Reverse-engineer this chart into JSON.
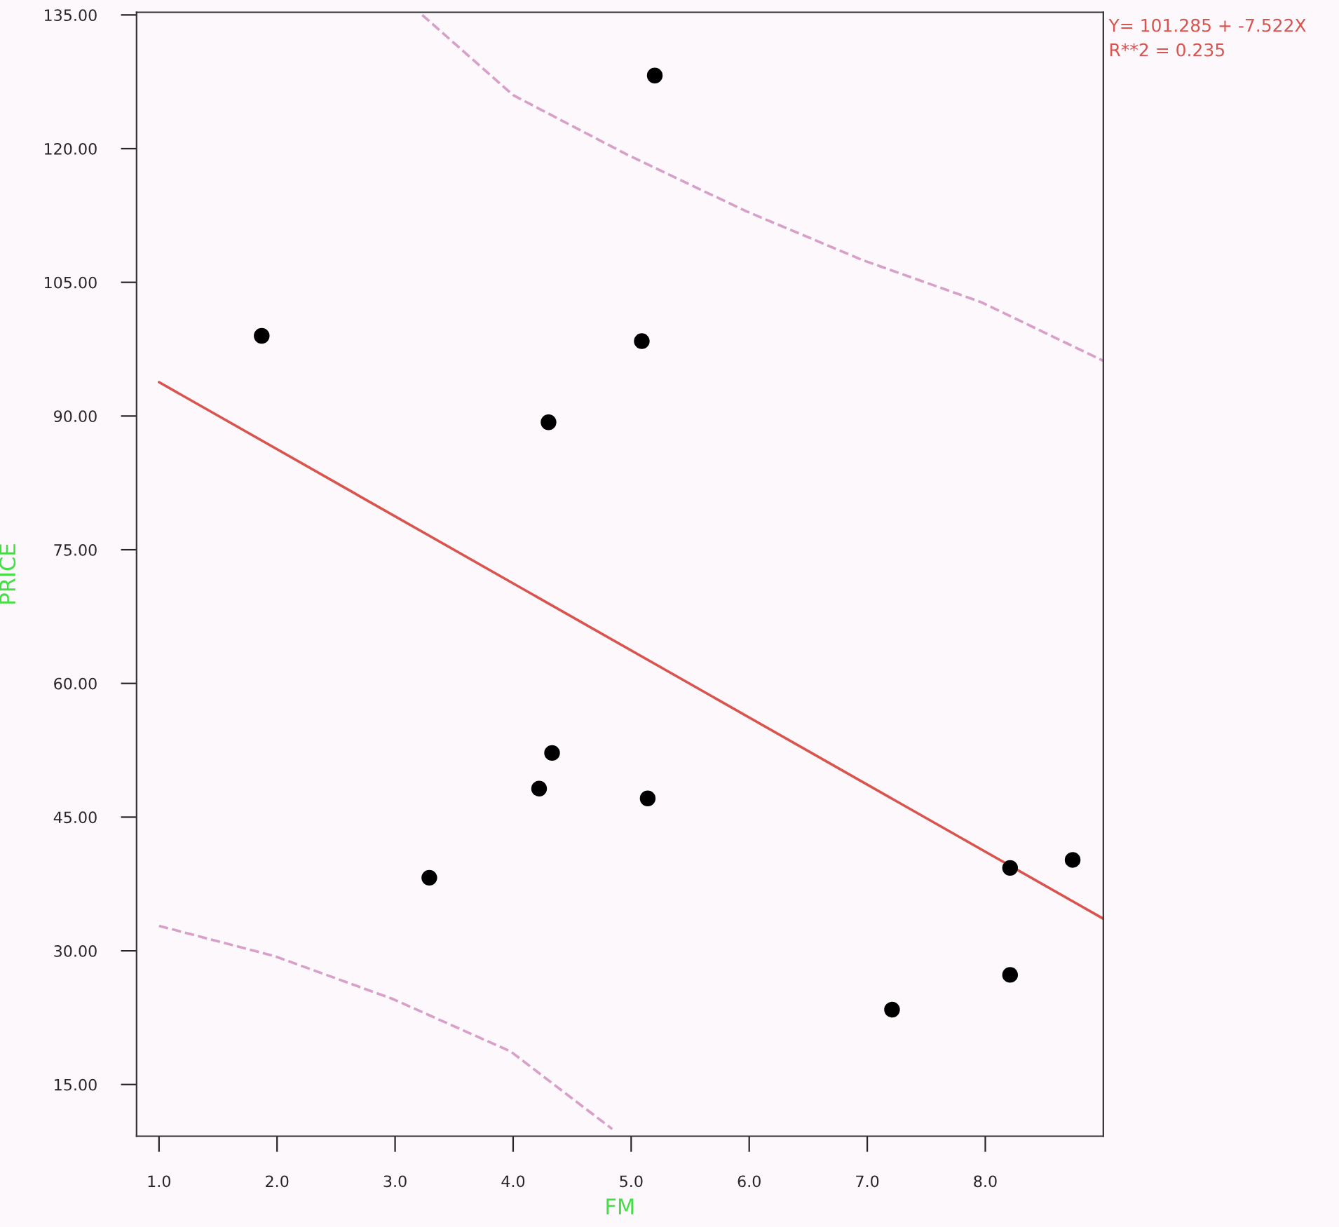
{
  "chart_data": {
    "type": "scatter",
    "xlabel": "FM",
    "ylabel": "PRICE",
    "annotations": [
      "Y= 101.285 + -7.522X",
      "R**2 = 0.235"
    ],
    "xlim": [
      0.81,
      9.0
    ],
    "ylim": [
      9.2,
      135.3
    ],
    "xticks": [
      {
        "value": 1,
        "label": "1.0"
      },
      {
        "value": 2,
        "label": "2.0"
      },
      {
        "value": 3,
        "label": "3.0"
      },
      {
        "value": 4,
        "label": "4.0"
      },
      {
        "value": 5,
        "label": "5.0"
      },
      {
        "value": 6,
        "label": "6.0"
      },
      {
        "value": 7,
        "label": "7.0"
      },
      {
        "value": 8,
        "label": "8.0"
      }
    ],
    "yticks": [
      {
        "value": 15,
        "label": "15.00"
      },
      {
        "value": 30,
        "label": "30.00"
      },
      {
        "value": 45,
        "label": "45.00"
      },
      {
        "value": 60,
        "label": "60.00"
      },
      {
        "value": 75,
        "label": "75.00"
      },
      {
        "value": 90,
        "label": "90.00"
      },
      {
        "value": 105,
        "label": "105.00"
      },
      {
        "value": 120,
        "label": "120.00"
      },
      {
        "value": 135,
        "label": "135.00"
      }
    ],
    "grid": false,
    "legend": false,
    "marker": "circle",
    "series": [
      {
        "color": "#000000",
        "x": [
          1.87,
          5.2,
          5.09,
          4.3,
          4.33,
          4.22,
          5.14,
          3.29,
          8.21,
          8.74,
          8.21,
          7.21
        ],
        "values": [
          99.0,
          128.2,
          98.4,
          89.3,
          52.2,
          48.2,
          47.1,
          38.2,
          39.3,
          40.2,
          27.3,
          23.4
        ]
      },
      {
        "type": "line",
        "color": "#d9534f",
        "line_style": "solid",
        "marker": "none",
        "x": [
          1,
          9
        ],
        "values": [
          93.8,
          33.6
        ]
      },
      {
        "type": "line",
        "color": "#d8a0c8",
        "line_style": "dashed",
        "marker": "none",
        "x": [
          3.23,
          4.0,
          4.97,
          5.97,
          6.96,
          7.96,
          9.0
        ],
        "values": [
          135.0,
          126.0,
          119.3,
          113.0,
          107.5,
          102.8,
          96.2
        ]
      },
      {
        "type": "line",
        "color": "#d8a0c8",
        "line_style": "dashed",
        "marker": "none",
        "x": [
          1,
          1.98,
          2.98,
          3.98,
          4.84
        ],
        "values": [
          32.8,
          29.4,
          24.6,
          18.7,
          10.0
        ]
      }
    ]
  }
}
